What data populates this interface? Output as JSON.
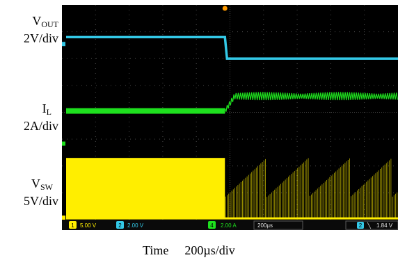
{
  "labels": {
    "vout": {
      "main": "V",
      "sub": "OUT",
      "scale": "2V/div"
    },
    "il": {
      "main": "I",
      "sub": "L",
      "scale": "2A/div"
    },
    "vsw": {
      "main": "V",
      "sub": "SW",
      "scale": "5V/div"
    }
  },
  "caption": {
    "time_label": "Time",
    "time_scale": "200µs/div"
  },
  "status_bar": {
    "ch1": {
      "num": "1",
      "value": "5.00 V"
    },
    "ch2": {
      "num": "2",
      "value": "2.00 V"
    },
    "ch4": {
      "num": "4",
      "value": "2.00 A"
    },
    "timebase": "200µs",
    "trigger": {
      "num": "2",
      "value": "1.84 V"
    }
  },
  "colors": {
    "background": "#000000",
    "grid": "#6a6a6a",
    "vout": "#33c8e6",
    "il": "#1ee01e",
    "vsw": "#ffee00",
    "trigger_marker": "#ff9a00"
  },
  "chart_data": {
    "type": "line",
    "title": "",
    "xlabel": "Time",
    "x_scale": "200µs/div",
    "x_divisions": 10,
    "y_divisions": 8,
    "grid": true,
    "step_time_div": 4.85,
    "series": [
      {
        "name": "VOUT",
        "scale": "2V/div",
        "before_div": 6.8,
        "after_div": 6.0,
        "notes": "step down after load step"
      },
      {
        "name": "IL",
        "scale": "2A/div",
        "before_div": 4.05,
        "after_mid_div": 4.6,
        "ripple_div": 0.3
      },
      {
        "name": "VSW",
        "scale": "5V/div",
        "high_div": 2.3,
        "low_div": 0.05,
        "behavior": "continuous switching before step, burst switching after"
      }
    ]
  }
}
